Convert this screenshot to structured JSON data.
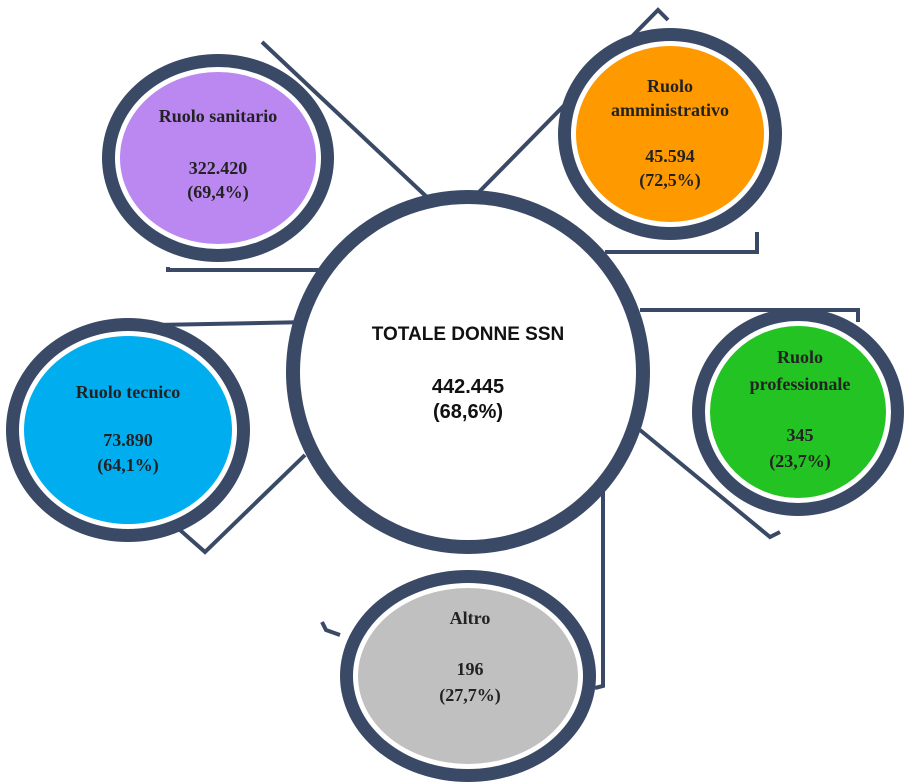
{
  "colors": {
    "ring_outer": "#3a4a66",
    "ring_white": "#ffffff",
    "connector": "#3a4a66",
    "center_fill": "#ffffff",
    "sanitario": "#bb88f2",
    "amministrativo": "#ff9900",
    "tecnico": "#00aeef",
    "professionale": "#22c322",
    "altro": "#c0c0c0"
  },
  "center": {
    "title": "TOTALE DONNE SSN",
    "value": "442.445",
    "percent": "(68,6%)"
  },
  "nodes": [
    {
      "id": "sanitario",
      "label_lines": [
        "Ruolo sanitario"
      ],
      "value": "322.420",
      "percent": "(69,4%)"
    },
    {
      "id": "amministrativo",
      "label_lines": [
        "Ruolo",
        "amministrativo"
      ],
      "value": "45.594",
      "percent": "(72,5%)"
    },
    {
      "id": "tecnico",
      "label_lines": [
        "Ruolo tecnico"
      ],
      "value": "73.890",
      "percent": "(64,1%)"
    },
    {
      "id": "professionale",
      "label_lines": [
        "Ruolo",
        "professionale"
      ],
      "value": "345",
      "percent": "(23,7%)"
    },
    {
      "id": "altro",
      "label_lines": [
        "Altro"
      ],
      "value": "196",
      "percent": "(27,7%)"
    }
  ]
}
